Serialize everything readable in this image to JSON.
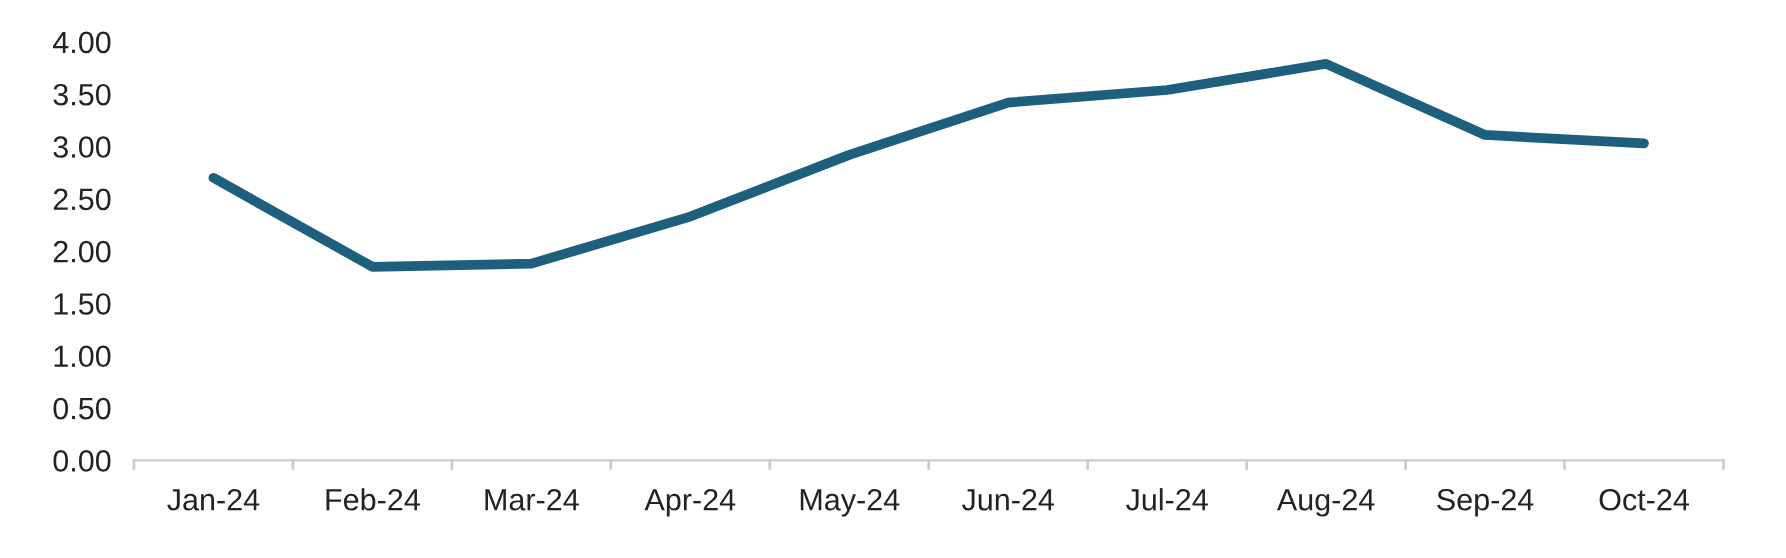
{
  "chart_data": {
    "type": "line",
    "categories": [
      "Jan-24",
      "Feb-24",
      "Mar-24",
      "Apr-24",
      "May-24",
      "Jun-24",
      "Jul-24",
      "Aug-24",
      "Sep-24",
      "Oct-24"
    ],
    "series": [
      {
        "color": "#1f5f7e",
        "values": [
          2.7,
          1.85,
          1.88,
          2.33,
          2.92,
          3.42,
          3.54,
          3.79,
          3.11,
          3.03
        ]
      }
    ],
    "ylim": [
      0,
      4
    ],
    "yticks": [
      {
        "value": 0,
        "label": "0.00"
      },
      {
        "value": 0.5,
        "label": "0.50"
      },
      {
        "value": 1,
        "label": "1.00"
      },
      {
        "value": 1.5,
        "label": "1.50"
      },
      {
        "value": 2,
        "label": "2.00"
      },
      {
        "value": 2.5,
        "label": "2.50"
      },
      {
        "value": 3,
        "label": "3.00"
      },
      {
        "value": 3.5,
        "label": "3.50"
      },
      {
        "value": 4,
        "label": "4.00"
      }
    ],
    "marker": "none",
    "line_style": "solid"
  }
}
